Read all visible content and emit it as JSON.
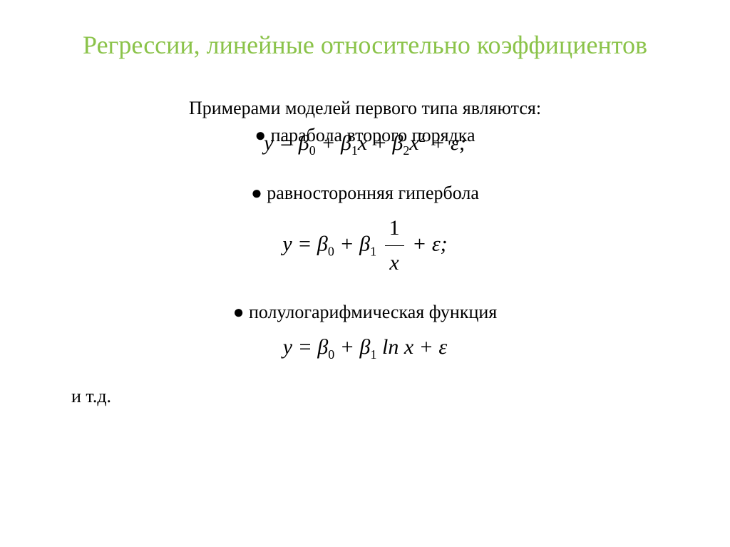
{
  "slide": {
    "title": "Регрессии, линейные относительно коэффициентов",
    "title_color": "#8bc34a",
    "title_fontsize": 36,
    "intro": "Примерами моделей первого типа являются:",
    "items": [
      {
        "bullet": "● парабола второго порядка",
        "formula_html": "<i>y</i> = <i>β</i><span class='sub'>0</span> + <i>β</i><span class='sub'>1</span><i>x</i> + <i>β</i><span class='sub'>2</span><i>x</i><span class='sup'>2</span> + <i>ε</i>;"
      },
      {
        "bullet": "● равносторонняя гипербола",
        "formula_html": "<i>y</i> = <i>β</i><span class='sub'>0</span> + <i>β</i><span class='sub'>1</span> <span class='formula-frac'><span class='num'>1</span><span class='den'><i>x</i></span></span> + <i>ε</i>;"
      },
      {
        "bullet": "● полулогарифмическая функция",
        "formula_html": "<i>y</i> = <i>β</i><span class='sub'>0</span> + <i>β</i><span class='sub'>1</span> ln <i>x</i> + <i>ε</i>"
      }
    ],
    "footer": "и т.д.",
    "text_color": "#000000",
    "body_fontsize": 26,
    "formula_fontsize": 30,
    "background_color": "#ffffff"
  }
}
